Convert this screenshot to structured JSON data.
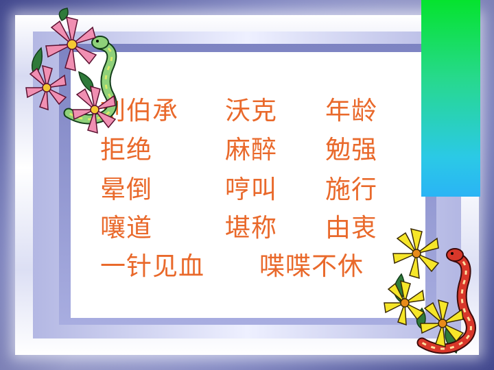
{
  "slide": {
    "rows": [
      [
        "刘伯承",
        "沃克",
        "年龄"
      ],
      [
        "拒绝",
        "麻醉",
        "勉强"
      ],
      [
        "晕倒",
        "哼叫",
        "施行"
      ],
      [
        "嚷道",
        "堪称",
        "由衷"
      ]
    ],
    "last_row": [
      "一针见血",
      "喋喋不休"
    ],
    "text_color": "#e9692b",
    "bar_colors": [
      "#05e32e",
      "#2ab4f5"
    ]
  }
}
